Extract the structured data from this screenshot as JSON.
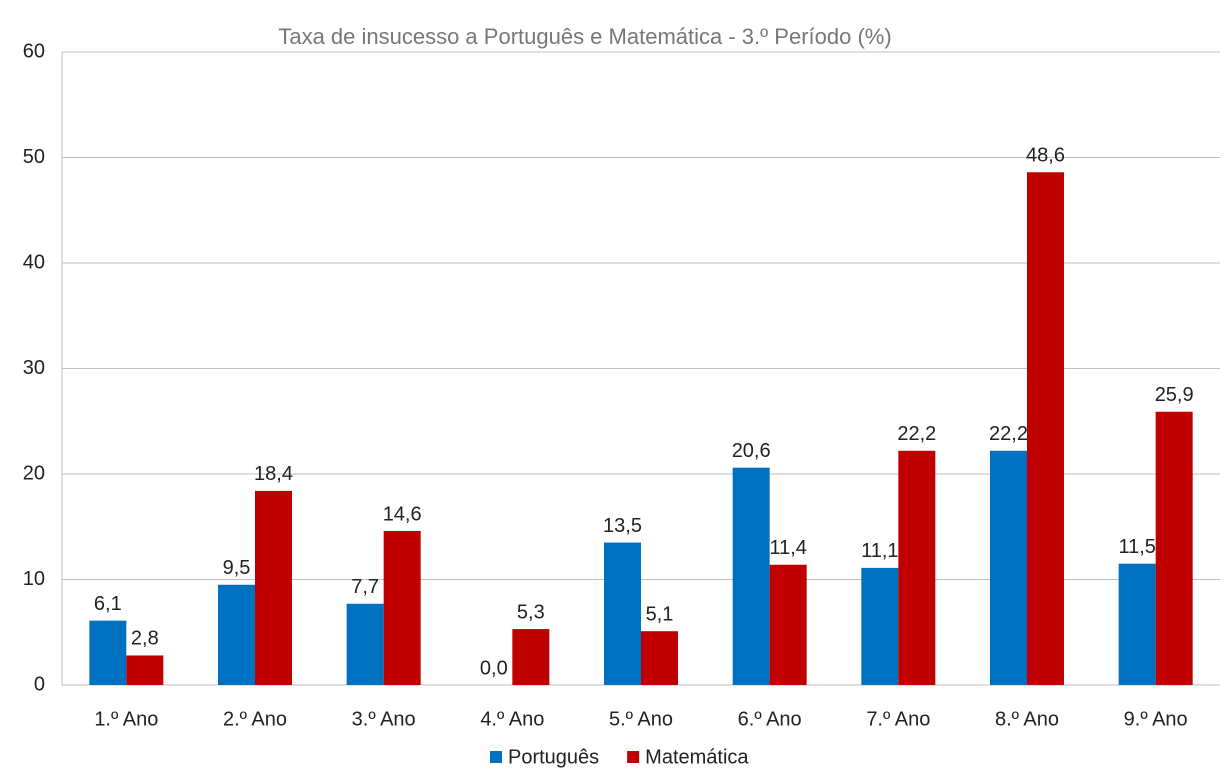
{
  "chart_data": {
    "type": "bar",
    "title": "Taxa de insucesso a Português e Matemática - 3.º Período (%)",
    "categories": [
      "1.º Ano",
      "2.º Ano",
      "3.º Ano",
      "4.º Ano",
      "5.º Ano",
      "6.º Ano",
      "7.º Ano",
      "8.º Ano",
      "9.º Ano"
    ],
    "series": [
      {
        "name": "Português",
        "color": "#0070c0",
        "values": [
          6.1,
          9.5,
          7.7,
          0.0,
          13.5,
          20.6,
          11.1,
          22.2,
          11.5
        ],
        "value_labels": [
          "6,1",
          "9,5",
          "7,7",
          "0,0",
          "13,5",
          "20,6",
          "11,1",
          "22,2",
          "11,5"
        ]
      },
      {
        "name": "Matemática",
        "color": "#c00000",
        "values": [
          2.8,
          18.4,
          14.6,
          5.3,
          5.1,
          11.4,
          22.2,
          48.6,
          25.9
        ],
        "value_labels": [
          "2,8",
          "18,4",
          "14,6",
          "5,3",
          "5,1",
          "11,4",
          "22,2",
          "48,6",
          "25,9"
        ]
      }
    ],
    "ylim": [
      0,
      60
    ],
    "yticks": [
      0,
      10,
      20,
      30,
      40,
      50,
      60
    ],
    "grid": true,
    "legend": "bottom"
  }
}
